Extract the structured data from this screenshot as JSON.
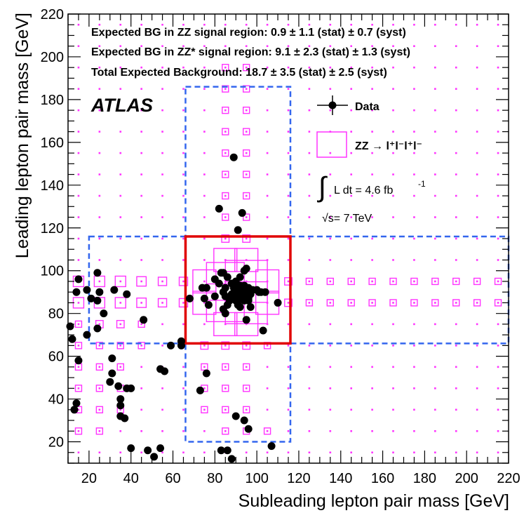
{
  "chart_data": {
    "type": "scatter",
    "xlabel": "Subleading lepton pair mass [GeV]",
    "ylabel": "Leading lepton pair mass [GeV]",
    "xlim": [
      10,
      220
    ],
    "ylim": [
      10,
      220
    ],
    "xticks": [
      20,
      40,
      60,
      80,
      100,
      120,
      140,
      160,
      180,
      200,
      220
    ],
    "yticks": [
      20,
      40,
      60,
      80,
      100,
      120,
      140,
      160,
      180,
      200,
      220
    ],
    "grid": false,
    "annotations": {
      "line1": "Expected BG in ZZ signal region: 0.9 ± 1.1 (stat) ± 0.7 (syst)",
      "line2": "Expected BG in ZZ* signal region: 9.1 ± 2.3 (stat) ± 1.3 (syst)",
      "line3": "Total Expected Background: 18.7 ± 3.5 (stat) ± 2.5 (syst)",
      "experiment": "ATLAS",
      "lumi_prefix": "L dt = 4.6  fb",
      "lumi_exp": "-1",
      "sqrt_s": "√s= 7 TeV"
    },
    "legend": {
      "placement": "top-right",
      "data_label": "Data",
      "zz_label": "ZZ → l⁺l⁻l⁺l⁻"
    },
    "colors": {
      "data": "#000000",
      "zz": "#ff33ff",
      "signal_box": "#e00000",
      "region_dashed": "#3366ee"
    },
    "regions": {
      "zz_signal": {
        "x": [
          66,
          116
        ],
        "y": [
          66,
          116
        ]
      },
      "zzstar_vertical": {
        "x": [
          66,
          116
        ],
        "y": [
          20,
          186
        ]
      },
      "zzstar_horizontal": {
        "x": [
          20,
          220
        ],
        "y": [
          66,
          116
        ]
      }
    },
    "zz_hist": {
      "bin_width": 10,
      "cells": [
        [
          95,
          95,
          2
        ],
        [
          95,
          85,
          2
        ],
        [
          85,
          95,
          1.8
        ],
        [
          85,
          85,
          1.8
        ],
        [
          105,
          95,
          1.1
        ],
        [
          105,
          85,
          1.1
        ],
        [
          75,
          95,
          1.1
        ],
        [
          75,
          85,
          1.1
        ],
        [
          85,
          105,
          1.1
        ],
        [
          95,
          105,
          1.1
        ],
        [
          85,
          75,
          1.1
        ],
        [
          95,
          75,
          1.1
        ],
        [
          15,
          95,
          0.5
        ],
        [
          15,
          85,
          0.5
        ],
        [
          25,
          95,
          0.5
        ],
        [
          25,
          85,
          0.5
        ],
        [
          35,
          95,
          0.5
        ],
        [
          35,
          85,
          0.5
        ],
        [
          45,
          95,
          0.45
        ],
        [
          45,
          85,
          0.45
        ],
        [
          55,
          95,
          0.4
        ],
        [
          55,
          85,
          0.4
        ],
        [
          65,
          95,
          0.4
        ],
        [
          65,
          85,
          0.4
        ],
        [
          25,
          75,
          0.35
        ],
        [
          35,
          75,
          0.35
        ],
        [
          45,
          75,
          0.3
        ],
        [
          15,
          75,
          0.3
        ],
        [
          25,
          65,
          0.3
        ],
        [
          35,
          65,
          0.3
        ],
        [
          15,
          65,
          0.3
        ],
        [
          45,
          65,
          0.3
        ],
        [
          15,
          55,
          0.3
        ],
        [
          25,
          55,
          0.3
        ],
        [
          35,
          55,
          0.3
        ],
        [
          15,
          45,
          0.3
        ],
        [
          25,
          45,
          0.3
        ],
        [
          35,
          45,
          0.3
        ],
        [
          15,
          35,
          0.3
        ],
        [
          25,
          35,
          0.3
        ],
        [
          35,
          35,
          0.3
        ],
        [
          15,
          25,
          0.3
        ],
        [
          25,
          25,
          0.3
        ],
        [
          75,
          65,
          0.35
        ],
        [
          85,
          65,
          0.35
        ],
        [
          95,
          65,
          0.35
        ],
        [
          105,
          65,
          0.3
        ],
        [
          75,
          55,
          0.3
        ],
        [
          85,
          55,
          0.3
        ],
        [
          95,
          55,
          0.3
        ],
        [
          85,
          45,
          0.3
        ],
        [
          95,
          45,
          0.3
        ],
        [
          75,
          45,
          0.3
        ],
        [
          85,
          35,
          0.3
        ],
        [
          95,
          35,
          0.3
        ],
        [
          75,
          35,
          0.3
        ],
        [
          85,
          25,
          0.3
        ],
        [
          95,
          25,
          0.3
        ],
        [
          105,
          25,
          0.3
        ],
        [
          115,
          95,
          0.35
        ],
        [
          115,
          85,
          0.35
        ],
        [
          125,
          95,
          0.3
        ],
        [
          125,
          85,
          0.3
        ],
        [
          135,
          95,
          0.3
        ],
        [
          135,
          85,
          0.3
        ],
        [
          145,
          95,
          0.3
        ],
        [
          145,
          85,
          0.3
        ],
        [
          155,
          95,
          0.3
        ],
        [
          155,
          85,
          0.3
        ],
        [
          165,
          95,
          0.3
        ],
        [
          165,
          85,
          0.3
        ],
        [
          175,
          95,
          0.3
        ],
        [
          175,
          85,
          0.3
        ],
        [
          185,
          95,
          0.3
        ],
        [
          185,
          85,
          0.3
        ],
        [
          195,
          95,
          0.3
        ],
        [
          195,
          85,
          0.3
        ],
        [
          205,
          95,
          0.3
        ],
        [
          205,
          85,
          0.3
        ],
        [
          215,
          95,
          0.3
        ],
        [
          215,
          85,
          0.3
        ],
        [
          85,
          115,
          0.35
        ],
        [
          95,
          115,
          0.35
        ],
        [
          85,
          125,
          0.3
        ],
        [
          95,
          125,
          0.3
        ],
        [
          85,
          135,
          0.3
        ],
        [
          95,
          135,
          0.3
        ],
        [
          85,
          145,
          0.3
        ],
        [
          95,
          145,
          0.3
        ],
        [
          85,
          155,
          0.3
        ],
        [
          95,
          155,
          0.3
        ],
        [
          85,
          165,
          0.3
        ],
        [
          95,
          165,
          0.3
        ],
        [
          85,
          175,
          0.3
        ],
        [
          95,
          175,
          0.3
        ],
        [
          85,
          185,
          0.3
        ],
        [
          95,
          185,
          0.3
        ],
        [
          85,
          195,
          0.3
        ],
        [
          95,
          195,
          0.3
        ]
      ]
    },
    "zz_dot_grid": {
      "x_start": 15,
      "x_step": 10,
      "y_start": 15,
      "y_step": 10,
      "max": 220
    },
    "points": [
      [
        15,
        96
      ],
      [
        14,
        90
      ],
      [
        19,
        91
      ],
      [
        24,
        99
      ],
      [
        25,
        90
      ],
      [
        21,
        87
      ],
      [
        24,
        86
      ],
      [
        32,
        91
      ],
      [
        38,
        89
      ],
      [
        27,
        80
      ],
      [
        24,
        73
      ],
      [
        19,
        70
      ],
      [
        11,
        74
      ],
      [
        12,
        68
      ],
      [
        15,
        58
      ],
      [
        14,
        38
      ],
      [
        13,
        35
      ],
      [
        31,
        59
      ],
      [
        31,
        52
      ],
      [
        30,
        48
      ],
      [
        34,
        46
      ],
      [
        38,
        45
      ],
      [
        35,
        40
      ],
      [
        35,
        37
      ],
      [
        35,
        32
      ],
      [
        37,
        31
      ],
      [
        40,
        45
      ],
      [
        40,
        17
      ],
      [
        46,
        77
      ],
      [
        54,
        54
      ],
      [
        56,
        53
      ],
      [
        59,
        65
      ],
      [
        64,
        67
      ],
      [
        64,
        65
      ],
      [
        48,
        16
      ],
      [
        51,
        13
      ],
      [
        54,
        17
      ],
      [
        68,
        87
      ],
      [
        74,
        92
      ],
      [
        76,
        92
      ],
      [
        75,
        87
      ],
      [
        77,
        84
      ],
      [
        80,
        96
      ],
      [
        80,
        88
      ],
      [
        82,
        94
      ],
      [
        83,
        99
      ],
      [
        84,
        99
      ],
      [
        85,
        92
      ],
      [
        86,
        97
      ],
      [
        85,
        88
      ],
      [
        86,
        84
      ],
      [
        84,
        82
      ],
      [
        85,
        80
      ],
      [
        87,
        86
      ],
      [
        88,
        94
      ],
      [
        88,
        89
      ],
      [
        89,
        92
      ],
      [
        89,
        87
      ],
      [
        90,
        95
      ],
      [
        90,
        90
      ],
      [
        90,
        86
      ],
      [
        91,
        92
      ],
      [
        91,
        89
      ],
      [
        91,
        84
      ],
      [
        92,
        97
      ],
      [
        92,
        93
      ],
      [
        92,
        87
      ],
      [
        92,
        83
      ],
      [
        93,
        91
      ],
      [
        93,
        88
      ],
      [
        94,
        100
      ],
      [
        94,
        93
      ],
      [
        94,
        90
      ],
      [
        94,
        86
      ],
      [
        95,
        101
      ],
      [
        95,
        89
      ],
      [
        96,
        92
      ],
      [
        97,
        91
      ],
      [
        98,
        91
      ],
      [
        96,
        86
      ],
      [
        95,
        77
      ],
      [
        100,
        91
      ],
      [
        101,
        90
      ],
      [
        102,
        90
      ],
      [
        104,
        90
      ],
      [
        97,
        89
      ],
      [
        96,
        87
      ],
      [
        97,
        83
      ],
      [
        103,
        72
      ],
      [
        110,
        85
      ],
      [
        89,
        153
      ],
      [
        82,
        129
      ],
      [
        93,
        127
      ],
      [
        91,
        119
      ],
      [
        73,
        44
      ],
      [
        76,
        52
      ],
      [
        90,
        32
      ],
      [
        94,
        30
      ],
      [
        96,
        26
      ],
      [
        83,
        16
      ],
      [
        86,
        16
      ],
      [
        88,
        12
      ],
      [
        107,
        18
      ],
      [
        84,
        90
      ],
      [
        92,
        91
      ]
    ]
  }
}
